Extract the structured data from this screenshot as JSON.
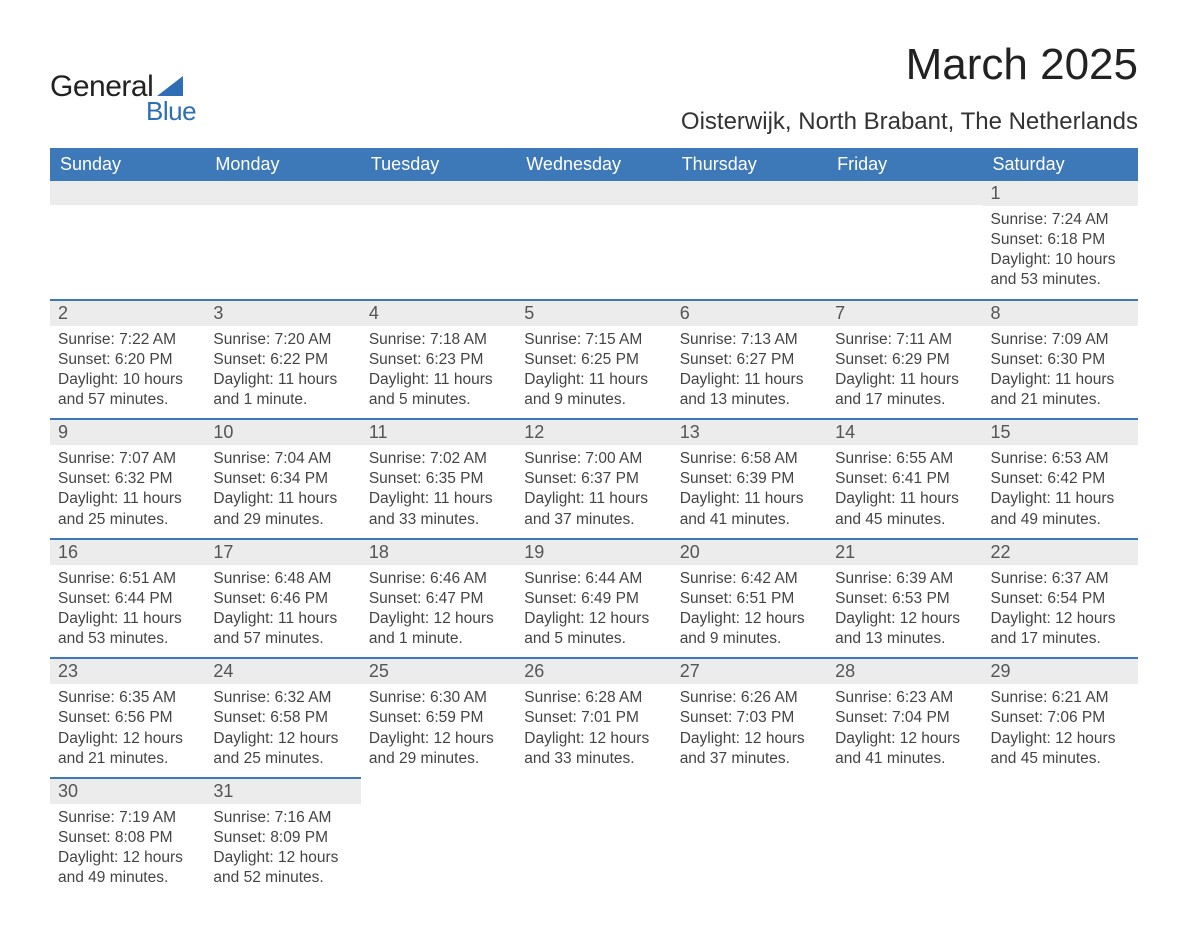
{
  "logo": {
    "text1": "General",
    "text2": "Blue"
  },
  "title": "March 2025",
  "location": "Oisterwijk, North Brabant, The Netherlands",
  "colors": {
    "header_bg": "#3d78b8",
    "header_fg": "#ffffff",
    "daynum_bg": "#ececec",
    "row_border": "#3d78b8",
    "logo_accent": "#2d6eb4"
  },
  "weekdays": [
    "Sunday",
    "Monday",
    "Tuesday",
    "Wednesday",
    "Thursday",
    "Friday",
    "Saturday"
  ],
  "weeks": [
    [
      {
        "n": "",
        "sr": "",
        "ss": "",
        "dl": ""
      },
      {
        "n": "",
        "sr": "",
        "ss": "",
        "dl": ""
      },
      {
        "n": "",
        "sr": "",
        "ss": "",
        "dl": ""
      },
      {
        "n": "",
        "sr": "",
        "ss": "",
        "dl": ""
      },
      {
        "n": "",
        "sr": "",
        "ss": "",
        "dl": ""
      },
      {
        "n": "",
        "sr": "",
        "ss": "",
        "dl": ""
      },
      {
        "n": "1",
        "sr": "Sunrise: 7:24 AM",
        "ss": "Sunset: 6:18 PM",
        "dl": "Daylight: 10 hours and 53 minutes."
      }
    ],
    [
      {
        "n": "2",
        "sr": "Sunrise: 7:22 AM",
        "ss": "Sunset: 6:20 PM",
        "dl": "Daylight: 10 hours and 57 minutes."
      },
      {
        "n": "3",
        "sr": "Sunrise: 7:20 AM",
        "ss": "Sunset: 6:22 PM",
        "dl": "Daylight: 11 hours and 1 minute."
      },
      {
        "n": "4",
        "sr": "Sunrise: 7:18 AM",
        "ss": "Sunset: 6:23 PM",
        "dl": "Daylight: 11 hours and 5 minutes."
      },
      {
        "n": "5",
        "sr": "Sunrise: 7:15 AM",
        "ss": "Sunset: 6:25 PM",
        "dl": "Daylight: 11 hours and 9 minutes."
      },
      {
        "n": "6",
        "sr": "Sunrise: 7:13 AM",
        "ss": "Sunset: 6:27 PM",
        "dl": "Daylight: 11 hours and 13 minutes."
      },
      {
        "n": "7",
        "sr": "Sunrise: 7:11 AM",
        "ss": "Sunset: 6:29 PM",
        "dl": "Daylight: 11 hours and 17 minutes."
      },
      {
        "n": "8",
        "sr": "Sunrise: 7:09 AM",
        "ss": "Sunset: 6:30 PM",
        "dl": "Daylight: 11 hours and 21 minutes."
      }
    ],
    [
      {
        "n": "9",
        "sr": "Sunrise: 7:07 AM",
        "ss": "Sunset: 6:32 PM",
        "dl": "Daylight: 11 hours and 25 minutes."
      },
      {
        "n": "10",
        "sr": "Sunrise: 7:04 AM",
        "ss": "Sunset: 6:34 PM",
        "dl": "Daylight: 11 hours and 29 minutes."
      },
      {
        "n": "11",
        "sr": "Sunrise: 7:02 AM",
        "ss": "Sunset: 6:35 PM",
        "dl": "Daylight: 11 hours and 33 minutes."
      },
      {
        "n": "12",
        "sr": "Sunrise: 7:00 AM",
        "ss": "Sunset: 6:37 PM",
        "dl": "Daylight: 11 hours and 37 minutes."
      },
      {
        "n": "13",
        "sr": "Sunrise: 6:58 AM",
        "ss": "Sunset: 6:39 PM",
        "dl": "Daylight: 11 hours and 41 minutes."
      },
      {
        "n": "14",
        "sr": "Sunrise: 6:55 AM",
        "ss": "Sunset: 6:41 PM",
        "dl": "Daylight: 11 hours and 45 minutes."
      },
      {
        "n": "15",
        "sr": "Sunrise: 6:53 AM",
        "ss": "Sunset: 6:42 PM",
        "dl": "Daylight: 11 hours and 49 minutes."
      }
    ],
    [
      {
        "n": "16",
        "sr": "Sunrise: 6:51 AM",
        "ss": "Sunset: 6:44 PM",
        "dl": "Daylight: 11 hours and 53 minutes."
      },
      {
        "n": "17",
        "sr": "Sunrise: 6:48 AM",
        "ss": "Sunset: 6:46 PM",
        "dl": "Daylight: 11 hours and 57 minutes."
      },
      {
        "n": "18",
        "sr": "Sunrise: 6:46 AM",
        "ss": "Sunset: 6:47 PM",
        "dl": "Daylight: 12 hours and 1 minute."
      },
      {
        "n": "19",
        "sr": "Sunrise: 6:44 AM",
        "ss": "Sunset: 6:49 PM",
        "dl": "Daylight: 12 hours and 5 minutes."
      },
      {
        "n": "20",
        "sr": "Sunrise: 6:42 AM",
        "ss": "Sunset: 6:51 PM",
        "dl": "Daylight: 12 hours and 9 minutes."
      },
      {
        "n": "21",
        "sr": "Sunrise: 6:39 AM",
        "ss": "Sunset: 6:53 PM",
        "dl": "Daylight: 12 hours and 13 minutes."
      },
      {
        "n": "22",
        "sr": "Sunrise: 6:37 AM",
        "ss": "Sunset: 6:54 PM",
        "dl": "Daylight: 12 hours and 17 minutes."
      }
    ],
    [
      {
        "n": "23",
        "sr": "Sunrise: 6:35 AM",
        "ss": "Sunset: 6:56 PM",
        "dl": "Daylight: 12 hours and 21 minutes."
      },
      {
        "n": "24",
        "sr": "Sunrise: 6:32 AM",
        "ss": "Sunset: 6:58 PM",
        "dl": "Daylight: 12 hours and 25 minutes."
      },
      {
        "n": "25",
        "sr": "Sunrise: 6:30 AM",
        "ss": "Sunset: 6:59 PM",
        "dl": "Daylight: 12 hours and 29 minutes."
      },
      {
        "n": "26",
        "sr": "Sunrise: 6:28 AM",
        "ss": "Sunset: 7:01 PM",
        "dl": "Daylight: 12 hours and 33 minutes."
      },
      {
        "n": "27",
        "sr": "Sunrise: 6:26 AM",
        "ss": "Sunset: 7:03 PM",
        "dl": "Daylight: 12 hours and 37 minutes."
      },
      {
        "n": "28",
        "sr": "Sunrise: 6:23 AM",
        "ss": "Sunset: 7:04 PM",
        "dl": "Daylight: 12 hours and 41 minutes."
      },
      {
        "n": "29",
        "sr": "Sunrise: 6:21 AM",
        "ss": "Sunset: 7:06 PM",
        "dl": "Daylight: 12 hours and 45 minutes."
      }
    ],
    [
      {
        "n": "30",
        "sr": "Sunrise: 7:19 AM",
        "ss": "Sunset: 8:08 PM",
        "dl": "Daylight: 12 hours and 49 minutes."
      },
      {
        "n": "31",
        "sr": "Sunrise: 7:16 AM",
        "ss": "Sunset: 8:09 PM",
        "dl": "Daylight: 12 hours and 52 minutes."
      },
      {
        "n": "",
        "sr": "",
        "ss": "",
        "dl": ""
      },
      {
        "n": "",
        "sr": "",
        "ss": "",
        "dl": ""
      },
      {
        "n": "",
        "sr": "",
        "ss": "",
        "dl": ""
      },
      {
        "n": "",
        "sr": "",
        "ss": "",
        "dl": ""
      },
      {
        "n": "",
        "sr": "",
        "ss": "",
        "dl": ""
      }
    ]
  ]
}
